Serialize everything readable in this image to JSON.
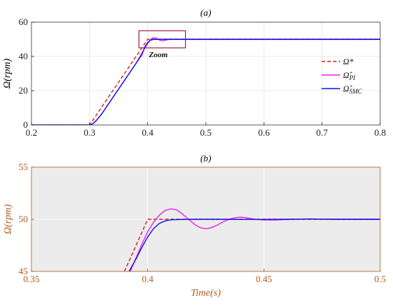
{
  "chart_data": [
    {
      "type": "line",
      "title": "(a)",
      "ylabel": "Ω(rpm)",
      "xlabel": "",
      "xlim": [
        0.2,
        0.8
      ],
      "ylim": [
        0,
        60
      ],
      "xticks": [
        0.2,
        0.3,
        0.4,
        0.5,
        0.6,
        0.7,
        0.8
      ],
      "xtick_labels": [
        "0.2",
        "0.3",
        "0.4",
        "0.5",
        "0.6",
        "0.7",
        "0.8"
      ],
      "yticks": [
        0,
        20,
        40,
        60
      ],
      "ytick_labels": [
        "0",
        "20",
        "40",
        "60"
      ],
      "grid": true,
      "legend_position": "right",
      "annotation": {
        "text": "Zoom",
        "box_x": [
          0.385,
          0.465
        ],
        "box_y": [
          45,
          55
        ],
        "color": "#a0203a"
      },
      "series": [
        {
          "name": "Ω*",
          "style": "dashed",
          "color": "#dd1c1c",
          "x": [
            0.2,
            0.3,
            0.4,
            0.8
          ],
          "y": [
            0,
            0,
            50,
            50
          ]
        },
        {
          "name": "Ω̂PI",
          "style": "solid",
          "color": "#ee22ee",
          "x": [
            0.2,
            0.303,
            0.31,
            0.32,
            0.34,
            0.36,
            0.38,
            0.39,
            0.4,
            0.405,
            0.41,
            0.415,
            0.42,
            0.425,
            0.43,
            0.44,
            0.45,
            0.46,
            0.47,
            0.48,
            0.8
          ],
          "y": [
            0,
            0,
            2,
            6,
            16,
            26,
            36,
            42,
            47.5,
            50,
            51,
            50.5,
            49.6,
            49.1,
            49.4,
            50.2,
            50,
            49.95,
            50.05,
            50,
            50
          ]
        },
        {
          "name": "Ω̂SMC",
          "style": "solid",
          "color": "#0a14ee",
          "x": [
            0.2,
            0.302,
            0.31,
            0.32,
            0.34,
            0.36,
            0.38,
            0.39,
            0.395,
            0.4,
            0.405,
            0.41,
            0.42,
            0.43,
            0.8
          ],
          "y": [
            0,
            0,
            2,
            6,
            16,
            26,
            36,
            41,
            45.5,
            48.2,
            49.5,
            49.9,
            50,
            50,
            50
          ]
        }
      ]
    },
    {
      "type": "line",
      "title": "(b)",
      "ylabel": "Ω(rpm)",
      "xlabel": "Time(s)",
      "xlim": [
        0.35,
        0.5
      ],
      "ylim": [
        45,
        55
      ],
      "xticks": [
        0.35,
        0.4,
        0.45,
        0.5
      ],
      "xtick_labels": [
        "0.35",
        "0.4",
        "0.45",
        "0.5"
      ],
      "yticks": [
        45,
        50,
        55
      ],
      "ytick_labels": [
        "45",
        "50",
        "55"
      ],
      "grid": true,
      "background": "#ececec",
      "axis_color": "#b05a1a",
      "series": [
        {
          "name": "Ω*",
          "style": "dashed",
          "color": "#dd1c1c",
          "x": [
            0.39,
            0.4,
            0.5
          ],
          "y": [
            45,
            50,
            50
          ]
        },
        {
          "name": "Ω̂PI",
          "style": "solid",
          "color": "#ee22ee",
          "x": [
            0.3925,
            0.395,
            0.3975,
            0.4,
            0.4025,
            0.405,
            0.4075,
            0.41,
            0.4125,
            0.415,
            0.4175,
            0.42,
            0.4225,
            0.425,
            0.4275,
            0.43,
            0.4325,
            0.435,
            0.4375,
            0.44,
            0.4425,
            0.445,
            0.4475,
            0.45,
            0.455,
            0.46,
            0.465,
            0.47,
            0.475,
            0.48,
            0.49,
            0.5
          ],
          "y": [
            45,
            46.3,
            47.6,
            48.8,
            49.7,
            50.4,
            50.85,
            51.0,
            50.9,
            50.5,
            50,
            49.55,
            49.2,
            49.1,
            49.2,
            49.45,
            49.75,
            50.0,
            50.15,
            50.2,
            50.15,
            50.05,
            49.97,
            49.93,
            49.93,
            49.98,
            50.02,
            50.04,
            50.02,
            50.0,
            50.0,
            50.0
          ]
        },
        {
          "name": "Ω̂SMC",
          "style": "solid",
          "color": "#0a14ee",
          "x": [
            0.392,
            0.395,
            0.3975,
            0.4,
            0.4025,
            0.405,
            0.4075,
            0.41,
            0.415,
            0.42,
            0.43,
            0.44,
            0.45,
            0.46,
            0.47,
            0.48,
            0.5
          ],
          "y": [
            45,
            46.2,
            47.3,
            48.3,
            49.1,
            49.6,
            49.85,
            49.95,
            49.98,
            50,
            50,
            49.99,
            49.99,
            50,
            50.02,
            50,
            50
          ]
        }
      ]
    }
  ]
}
